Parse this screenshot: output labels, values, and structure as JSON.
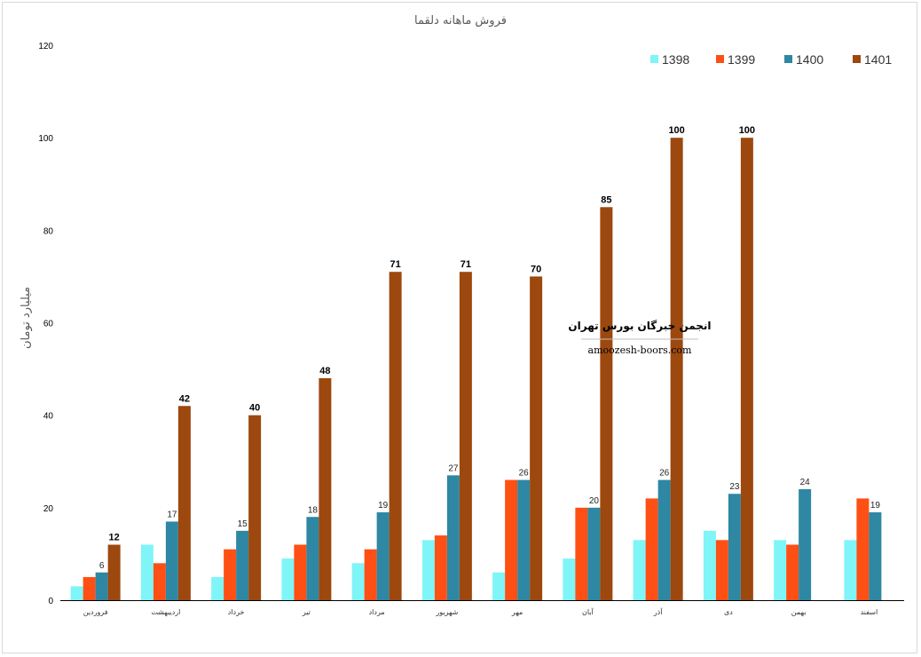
{
  "chart_data": {
    "type": "bar",
    "title": "فروش ماهانه دلقما",
    "ylabel": "میلیارد تومان",
    "xlabel": "",
    "ylim": [
      0,
      120
    ],
    "yticks": [
      0,
      20,
      40,
      60,
      80,
      100,
      120
    ],
    "grid": false,
    "legend_position": "top-right",
    "categories": [
      "فروردین",
      "اردیبهشت",
      "خرداد",
      "تیر",
      "مرداد",
      "شهریور",
      "مهر",
      "آبان",
      "آذر",
      "دی",
      "بهمن",
      "اسفند"
    ],
    "series": [
      {
        "name": "1398",
        "color": "#7ff5f8",
        "values": [
          3,
          12,
          5,
          9,
          8,
          13,
          6,
          9,
          13,
          15,
          13,
          13
        ],
        "labels": [
          null,
          null,
          null,
          null,
          null,
          null,
          null,
          null,
          null,
          null,
          null,
          null
        ]
      },
      {
        "name": "1399",
        "color": "#fe5014",
        "values": [
          5,
          8,
          11,
          12,
          11,
          14,
          26,
          20,
          22,
          13,
          12,
          22
        ],
        "labels": [
          null,
          null,
          null,
          null,
          null,
          null,
          null,
          null,
          null,
          null,
          null,
          null
        ]
      },
      {
        "name": "1400",
        "color": "#2e87a3",
        "values": [
          6,
          17,
          15,
          18,
          19,
          27,
          26,
          20,
          26,
          23,
          24,
          19
        ],
        "labels": [
          6,
          17,
          15,
          18,
          19,
          27,
          26,
          20,
          26,
          23,
          24,
          19
        ]
      },
      {
        "name": "1401",
        "color": "#9c480e",
        "values": [
          12,
          42,
          40,
          48,
          71,
          71,
          70,
          85,
          100,
          100,
          null,
          null
        ],
        "labels": [
          12,
          42,
          40,
          48,
          71,
          71,
          70,
          85,
          100,
          100,
          null,
          null
        ]
      }
    ]
  },
  "watermark": {
    "title": "انجمن خبرگان بورس تهران",
    "url": "amoozesh-boors.com"
  }
}
